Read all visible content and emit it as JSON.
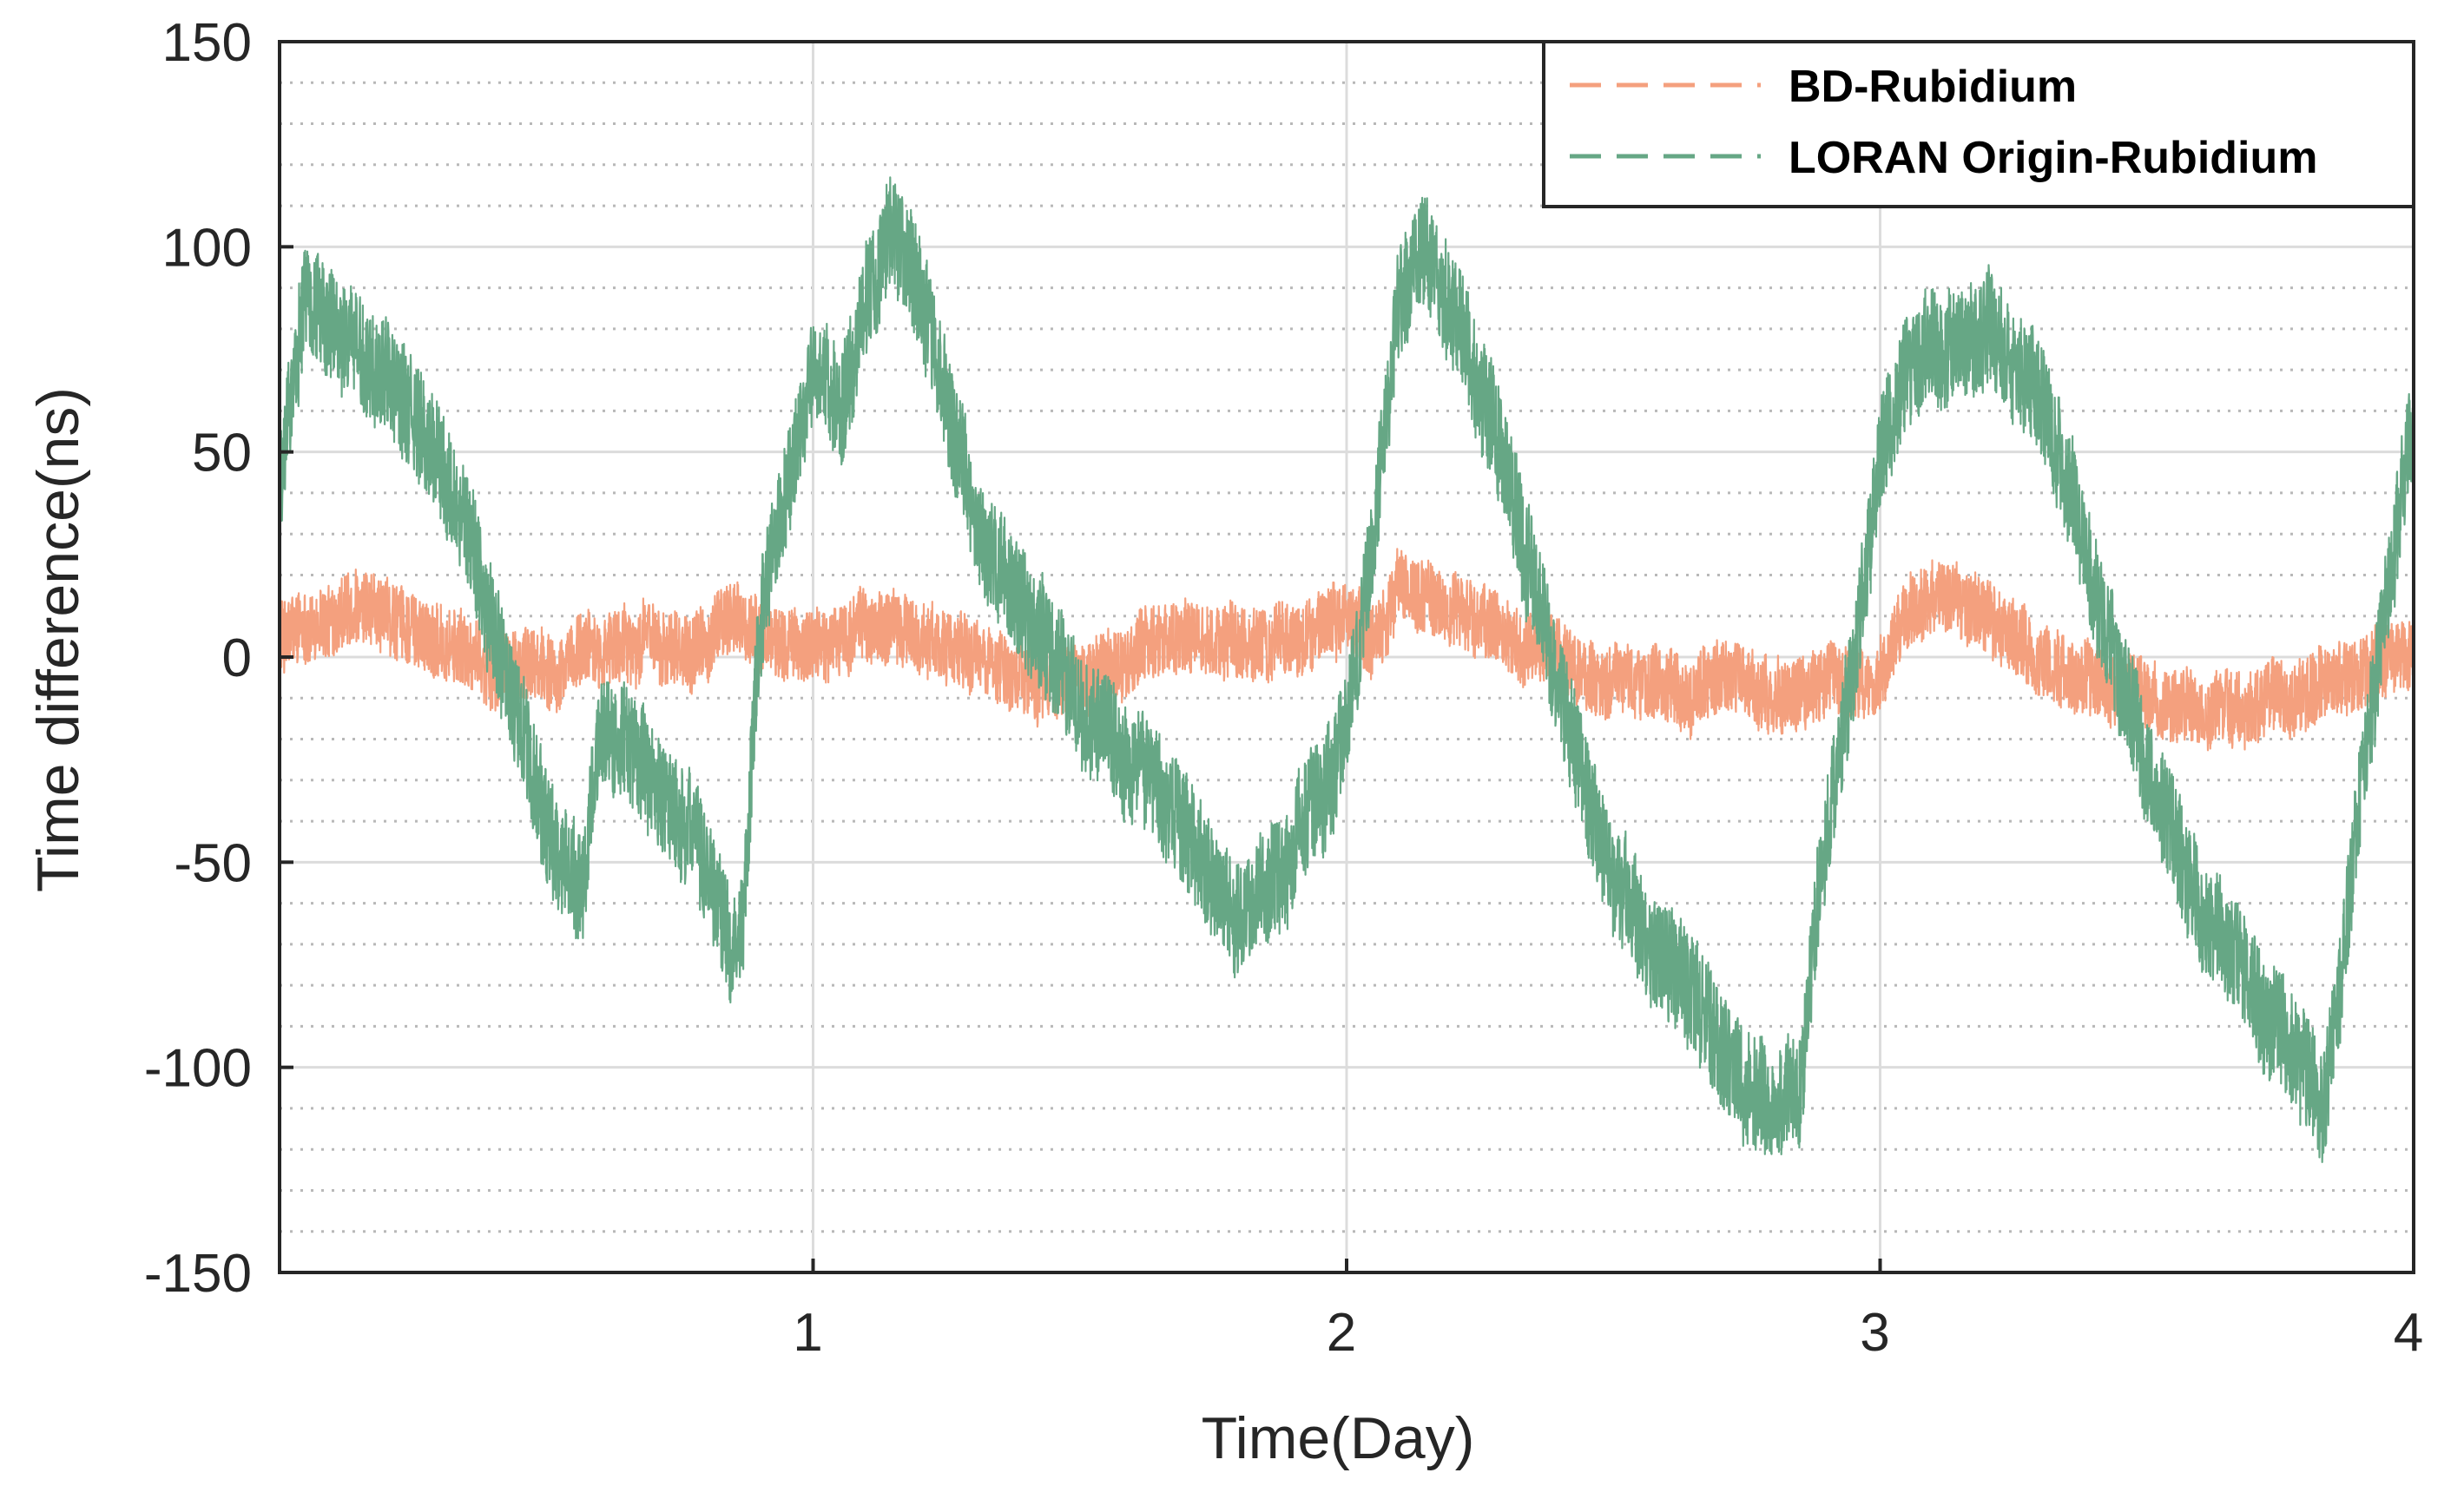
{
  "chart_data": {
    "type": "line",
    "title": "",
    "xlabel": "Time(Day)",
    "ylabel": "Time difference(ns)",
    "xlim": [
      0,
      4
    ],
    "ylim": [
      -150,
      150
    ],
    "x_ticks": [
      1,
      2,
      3,
      4
    ],
    "x_tick_labels": [
      "1",
      "2",
      "3",
      "4"
    ],
    "y_ticks": [
      150,
      100,
      50,
      0,
      -50,
      -100,
      -150
    ],
    "y_tick_labels": [
      "150",
      "100",
      "50",
      "0",
      "-50",
      "-100",
      "-150"
    ],
    "grid": "major solid, minor dotted (10 ns)",
    "legend_position": "top-right",
    "series": [
      {
        "name": "BD-Rubidium",
        "color": "#f4a07e",
        "noise_amplitude": 9,
        "x": [
          0,
          0.1,
          0.2,
          0.3,
          0.4,
          0.5,
          0.6,
          0.7,
          0.8,
          0.85,
          0.9,
          1.0,
          1.1,
          1.2,
          1.3,
          1.4,
          1.5,
          1.6,
          1.7,
          1.8,
          1.9,
          2.0,
          2.05,
          2.1,
          2.2,
          2.3,
          2.4,
          2.5,
          2.6,
          2.7,
          2.8,
          2.9,
          3.0,
          3.05,
          3.1,
          3.2,
          3.3,
          3.4,
          3.5,
          3.6,
          3.7,
          3.8,
          3.9,
          4.0
        ],
        "y": [
          5,
          8,
          10,
          5,
          -3,
          -2,
          2,
          5,
          3,
          10,
          5,
          2,
          8,
          5,
          0,
          -5,
          -5,
          0,
          5,
          3,
          6,
          10,
          5,
          15,
          12,
          5,
          -2,
          -5,
          -8,
          -5,
          -10,
          -8,
          -5,
          8,
          15,
          10,
          0,
          -5,
          -10,
          -12,
          -10,
          -8,
          -5,
          0
        ]
      },
      {
        "name": "LORAN Origin-Rubidium",
        "color": "#66a785",
        "noise_amplitude": 14,
        "x": [
          0,
          0.05,
          0.1,
          0.2,
          0.3,
          0.4,
          0.5,
          0.55,
          0.57,
          0.6,
          0.7,
          0.8,
          0.85,
          0.87,
          0.9,
          0.95,
          1.0,
          1.05,
          1.1,
          1.15,
          1.2,
          1.3,
          1.4,
          1.5,
          1.6,
          1.7,
          1.8,
          1.9,
          1.95,
          2.0,
          2.05,
          2.1,
          2.15,
          2.2,
          2.3,
          2.4,
          2.5,
          2.6,
          2.7,
          2.8,
          2.85,
          2.88,
          2.95,
          3.0,
          3.05,
          3.1,
          3.2,
          3.3,
          3.4,
          3.5,
          3.6,
          3.7,
          3.8,
          3.83,
          3.86,
          3.9,
          4.0
        ],
        "y": [
          40,
          90,
          80,
          70,
          50,
          10,
          -40,
          -55,
          -55,
          -15,
          -30,
          -50,
          -70,
          -60,
          10,
          40,
          70,
          60,
          90,
          105,
          90,
          35,
          10,
          -10,
          -25,
          -45,
          -65,
          -45,
          -35,
          -15,
          30,
          90,
          100,
          85,
          45,
          -10,
          -55,
          -75,
          -95,
          -110,
          -105,
          -60,
          -5,
          50,
          70,
          75,
          80,
          65,
          20,
          -25,
          -60,
          -80,
          -100,
          -110,
          -80,
          -30,
          60
        ]
      }
    ]
  }
}
